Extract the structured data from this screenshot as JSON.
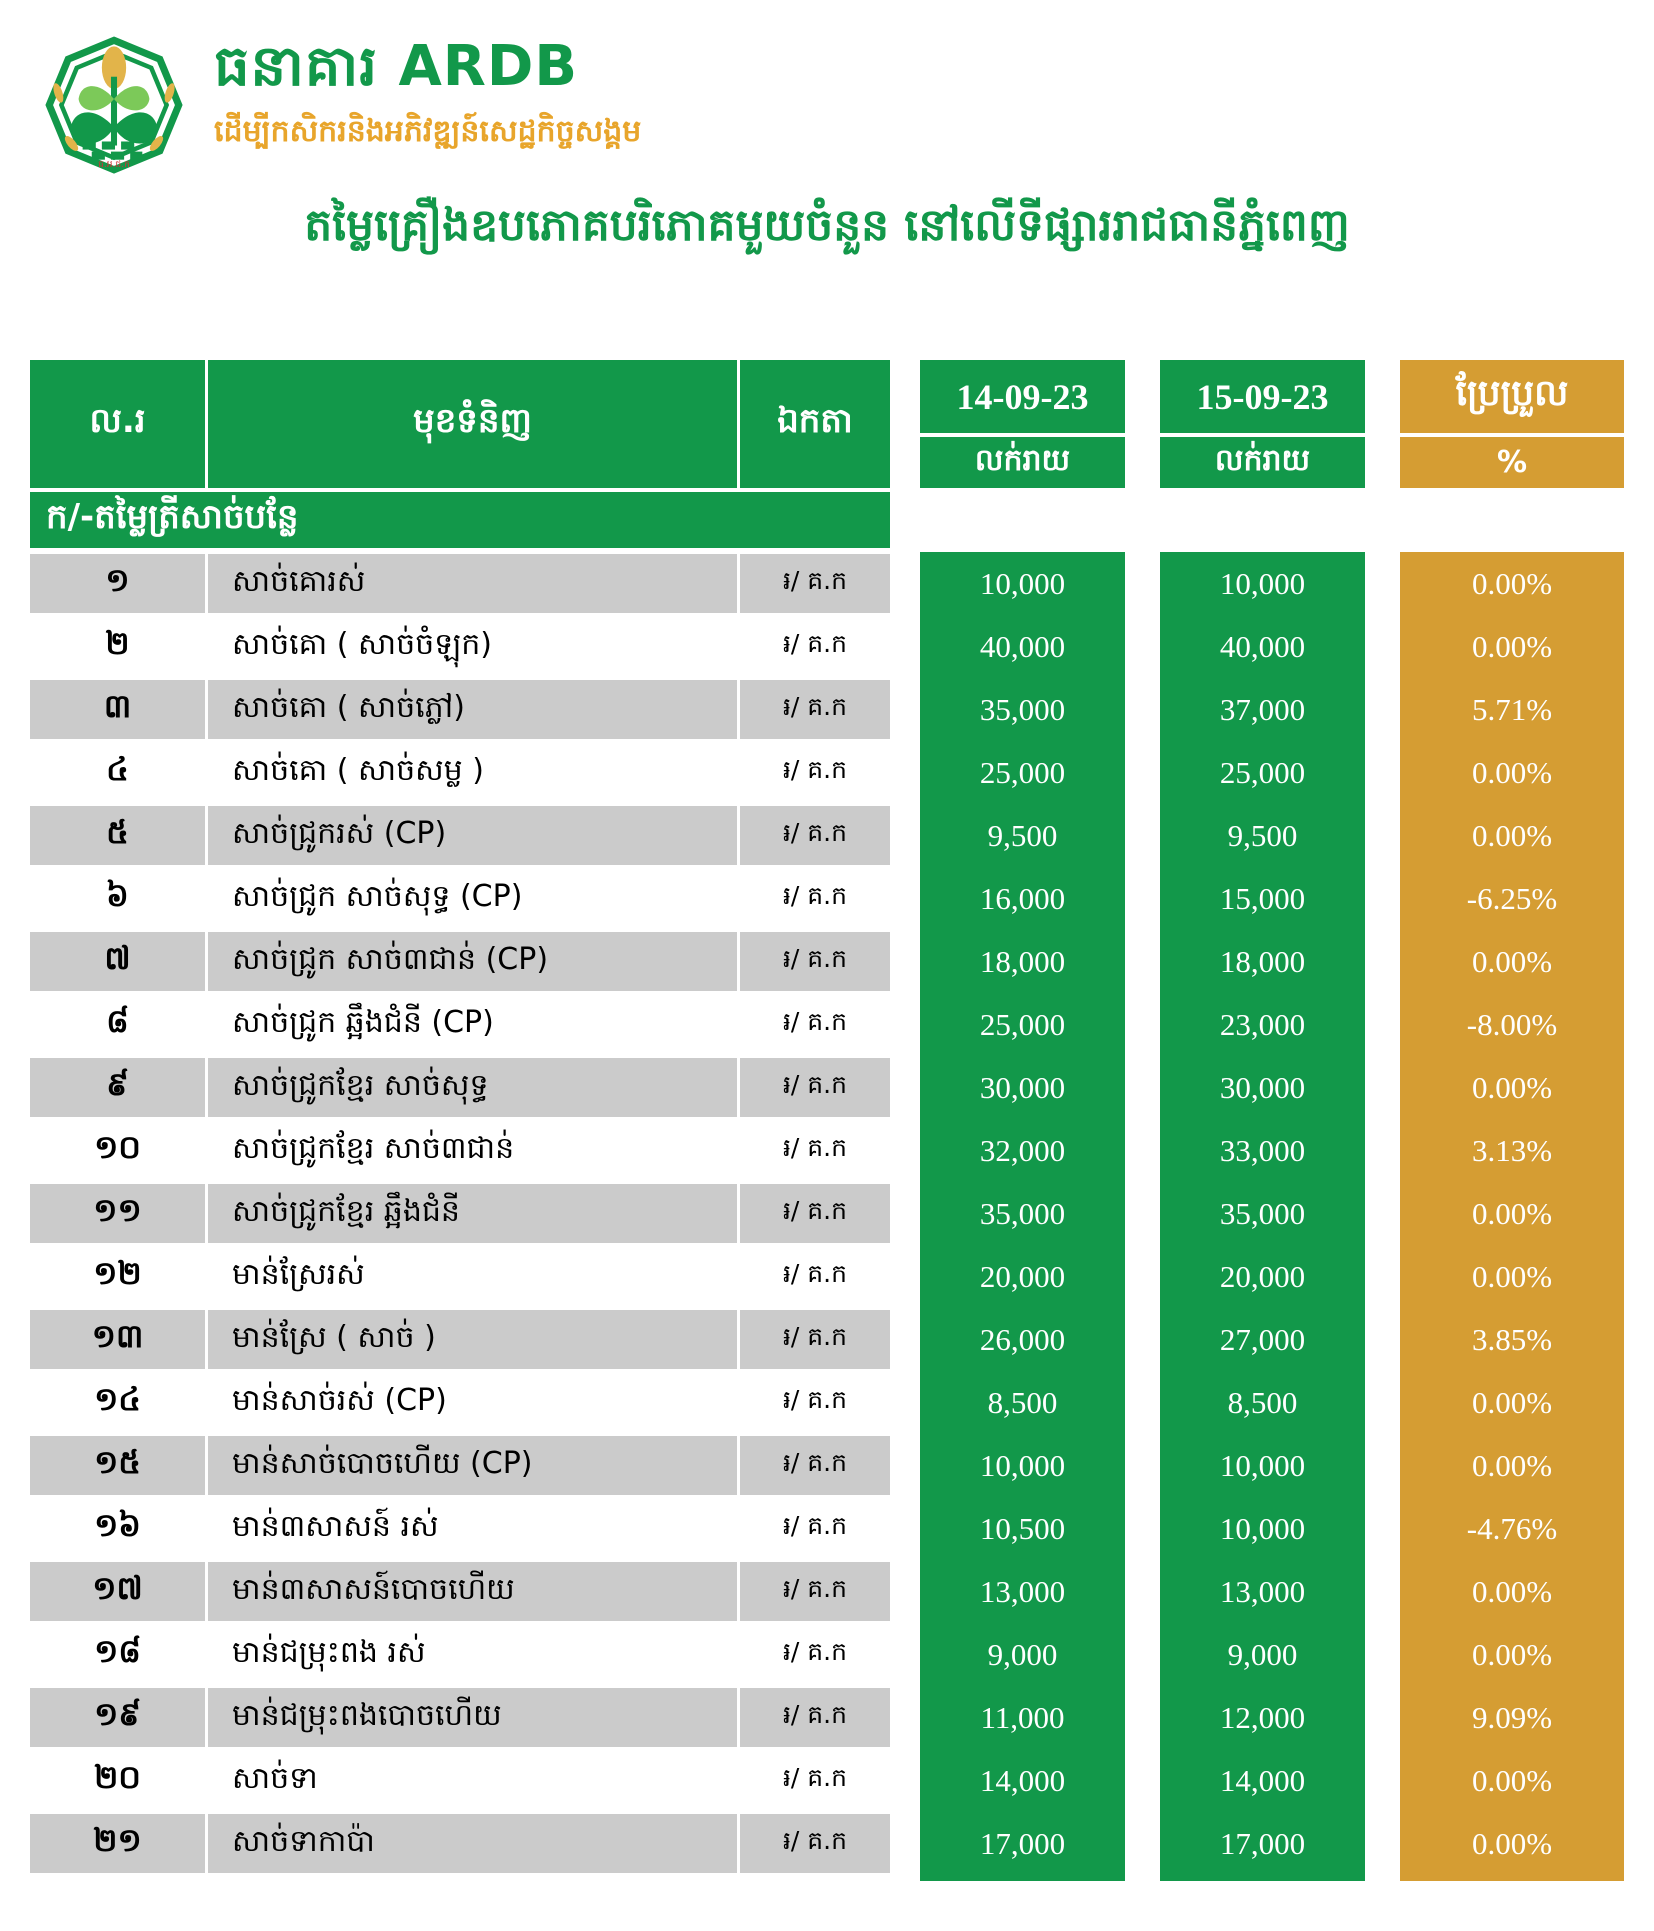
{
  "brand": {
    "name": "ធនាគារ ARDB",
    "tagline": "ដើម្បីកសិករនិងអភិវឌ្ឍន៍សេដ្ឋកិច្ចសង្គម",
    "logo_caption": "ធ.អ.ជ.ក"
  },
  "title": "តម្លៃគ្រឿងឧបភោគបរិភោគមួយចំនួន នៅលើទីផ្សាររាជធានីភ្នំពេញ",
  "colors": {
    "green": "#12984A",
    "orange": "#D59D33",
    "gray": "#CBCBCB",
    "tagline_orange": "#E8A52B",
    "logo_red": "#CC3333"
  },
  "table": {
    "headers": {
      "no": "ល.រ",
      "item": "មុខទំនិញ",
      "unit": "ឯកតា",
      "date1": "14-09-23",
      "retail1": "លក់រាយ",
      "date2": "15-09-23",
      "retail2": "លក់រាយ",
      "change": "ប្រែប្រួល",
      "percent": "%"
    },
    "section": "ក/-តម្លៃត្រីសាច់បន្លែ",
    "rows": [
      {
        "no": "១",
        "item": "សាច់គោរស់",
        "unit": "៛/ គ.ក",
        "p1": "10,000",
        "p2": "10,000",
        "chg": "0.00%"
      },
      {
        "no": "២",
        "item": "សាច់គោ ( សាច់ចំឡុក)",
        "unit": "៛/ គ.ក",
        "p1": "40,000",
        "p2": "40,000",
        "chg": "0.00%"
      },
      {
        "no": "៣",
        "item": "សាច់គោ ( សាច់ភ្លៅ)",
        "unit": "៛/ គ.ក",
        "p1": "35,000",
        "p2": "37,000",
        "chg": "5.71%"
      },
      {
        "no": "៤",
        "item": "សាច់គោ ( សាច់សម្ល )",
        "unit": "៛/ គ.ក",
        "p1": "25,000",
        "p2": "25,000",
        "chg": "0.00%"
      },
      {
        "no": "៥",
        "item": "សាច់ជ្រូករស់ (CP)",
        "unit": "៛/ គ.ក",
        "p1": "9,500",
        "p2": "9,500",
        "chg": "0.00%"
      },
      {
        "no": "៦",
        "item": "សាច់ជ្រូក សាច់សុទ្ធ (CP)",
        "unit": "៛/ គ.ក",
        "p1": "16,000",
        "p2": "15,000",
        "chg": "-6.25%"
      },
      {
        "no": "៧",
        "item": "សាច់ជ្រូក សាច់៣ជាន់ (CP)",
        "unit": "៛/ គ.ក",
        "p1": "18,000",
        "p2": "18,000",
        "chg": "0.00%"
      },
      {
        "no": "៨",
        "item": "សាច់ជ្រូក ឆ្អឹងជំនី (CP)",
        "unit": "៛/ គ.ក",
        "p1": "25,000",
        "p2": "23,000",
        "chg": "-8.00%"
      },
      {
        "no": "៩",
        "item": "សាច់ជ្រូកខ្មែរ សាច់សុទ្ធ",
        "unit": "៛/ គ.ក",
        "p1": "30,000",
        "p2": "30,000",
        "chg": "0.00%"
      },
      {
        "no": "១០",
        "item": "សាច់ជ្រូកខ្មែរ សាច់៣ជាន់",
        "unit": "៛/ គ.ក",
        "p1": "32,000",
        "p2": "33,000",
        "chg": "3.13%"
      },
      {
        "no": "១១",
        "item": "សាច់ជ្រូកខ្មែរ ឆ្អឹងជំនី",
        "unit": "៛/ គ.ក",
        "p1": "35,000",
        "p2": "35,000",
        "chg": "0.00%"
      },
      {
        "no": "១២",
        "item": "មាន់ស្រែរស់",
        "unit": "៛/ គ.ក",
        "p1": "20,000",
        "p2": "20,000",
        "chg": "0.00%"
      },
      {
        "no": "១៣",
        "item": "មាន់ស្រែ ( សាច់ )",
        "unit": "៛/ គ.ក",
        "p1": "26,000",
        "p2": "27,000",
        "chg": "3.85%"
      },
      {
        "no": "១៤",
        "item": "មាន់សាច់រស់ (CP)",
        "unit": "៛/ គ.ក",
        "p1": "8,500",
        "p2": "8,500",
        "chg": "0.00%"
      },
      {
        "no": "១៥",
        "item": "មាន់សាច់បោចហើយ (CP)",
        "unit": "៛/ គ.ក",
        "p1": "10,000",
        "p2": "10,000",
        "chg": "0.00%"
      },
      {
        "no": "១៦",
        "item": "មាន់៣សាសន៍ រស់",
        "unit": "៛/ គ.ក",
        "p1": "10,500",
        "p2": "10,000",
        "chg": "-4.76%"
      },
      {
        "no": "១៧",
        "item": "មាន់៣សាសន៍បោចហើយ",
        "unit": "៛/ គ.ក",
        "p1": "13,000",
        "p2": "13,000",
        "chg": "0.00%"
      },
      {
        "no": "១៨",
        "item": "មាន់ជម្រុះពង រស់",
        "unit": "៛/ គ.ក",
        "p1": "9,000",
        "p2": "9,000",
        "chg": "0.00%"
      },
      {
        "no": "១៩",
        "item": "មាន់ជម្រុះពងបោចហើយ",
        "unit": "៛/ គ.ក",
        "p1": "11,000",
        "p2": "12,000",
        "chg": "9.09%"
      },
      {
        "no": "២០",
        "item": "សាច់ទា",
        "unit": "៛/ គ.ក",
        "p1": "14,000",
        "p2": "14,000",
        "chg": "0.00%"
      },
      {
        "no": "២១",
        "item": "សាច់ទាកាប៉ា",
        "unit": "៛/ គ.ក",
        "p1": "17,000",
        "p2": "17,000",
        "chg": "0.00%"
      }
    ]
  }
}
